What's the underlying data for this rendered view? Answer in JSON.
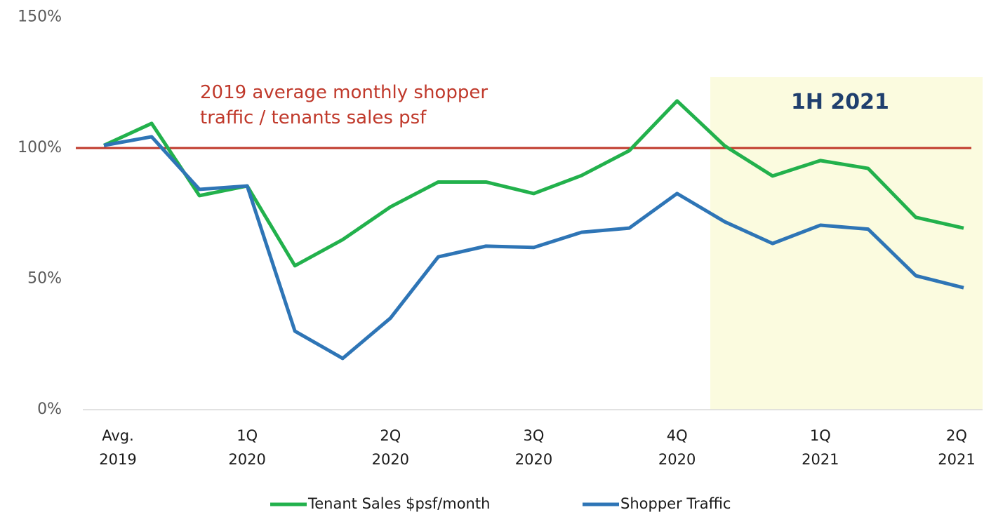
{
  "chart_data": {
    "type": "line",
    "categories": [
      "Avg.\n2019",
      null,
      null,
      "1Q\n2020",
      null,
      null,
      "2Q\n2020",
      null,
      null,
      "3Q\n2020",
      null,
      null,
      "4Q\n2020",
      null,
      null,
      "1Q\n2021",
      null,
      null,
      "2Q\n2021"
    ],
    "series": [
      {
        "name": "Tenant Sales $psf/month",
        "color": "#22b14c",
        "values": [
          101,
          109.4,
          81.8,
          85.5,
          55,
          65,
          77.5,
          87,
          87,
          82.6,
          89.5,
          99,
          118,
          100.8,
          89.3,
          95.2,
          92.2,
          73.5,
          69.4
        ]
      },
      {
        "name": "Shopper Traffic",
        "color": "#2e75b6",
        "values": [
          101,
          104.3,
          84.2,
          85.5,
          30,
          19.6,
          35,
          58.4,
          62.5,
          62,
          67.8,
          69.4,
          82.6,
          71.8,
          63.5,
          70.5,
          69,
          51.2,
          46.6
        ]
      }
    ],
    "reference_line": {
      "value": 100,
      "color": "#c0392b",
      "label": "2019 average monthly shopper\ntraffic / tenants sales psf"
    },
    "highlight": {
      "label": "1H 2021",
      "color": "#fbfbdf"
    },
    "ylim": [
      0,
      150
    ],
    "yticks": [
      {
        "value": 0,
        "label": "0%"
      },
      {
        "value": 50,
        "label": "50%"
      },
      {
        "value": 100,
        "label": "100%"
      },
      {
        "value": 150,
        "label": "150%"
      }
    ],
    "grid": false,
    "legend": "bottom"
  }
}
